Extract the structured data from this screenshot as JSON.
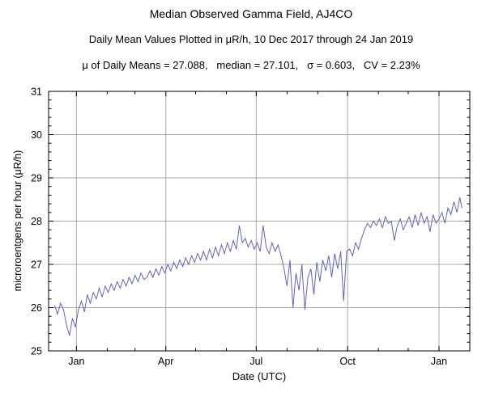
{
  "header": {
    "title": "Median Observed Gamma Field, AJ4CO",
    "subtitle": "Daily Mean Values Plotted in μR/h, 10 Dec 2017 through 24 Jan 2019",
    "stats": "μ of Daily Means = 27.088,   median = 27.101,   σ = 0.603,   CV = 2.23%"
  },
  "chart_data": {
    "type": "line",
    "title": "Median Observed Gamma Field, AJ4CO",
    "subtitle": "Daily Mean Values Plotted in μR/h, 10 Dec 2017 through 24 Jan 2019",
    "stats_line": "μ of Daily Means = 27.088,   median = 27.101,   σ = 0.603,   CV = 2.23%",
    "xlabel": "Date (UTC)",
    "ylabel": "microroentgens per hour (μR/h)",
    "ylim": [
      25,
      31
    ],
    "y_ticks": [
      25,
      26,
      27,
      28,
      29,
      30,
      31
    ],
    "grid": true,
    "legend": "none",
    "x_domain_days": [
      -6,
      418
    ],
    "x_epoch": "days since 10 Dec 2017",
    "x_major_ticks": [
      {
        "day": 22,
        "label": "Jan"
      },
      {
        "day": 112,
        "label": "Apr"
      },
      {
        "day": 203,
        "label": "Jul"
      },
      {
        "day": 295,
        "label": "Oct"
      },
      {
        "day": 387,
        "label": "Jan"
      }
    ],
    "x_minor_ticks_days": [
      53,
      81,
      142,
      173,
      234,
      265,
      326,
      356
    ],
    "line_color": "#6363b8",
    "grid_color": "#aaaaaa",
    "frame_color": "#000000",
    "series": [
      {
        "name": "daily-mean-gamma",
        "points": [
          [
            0,
            26.05
          ],
          [
            3,
            25.85
          ],
          [
            6,
            26.1
          ],
          [
            9,
            25.95
          ],
          [
            12,
            25.6
          ],
          [
            15,
            25.35
          ],
          [
            18,
            25.75
          ],
          [
            21,
            25.55
          ],
          [
            24,
            25.95
          ],
          [
            27,
            26.15
          ],
          [
            30,
            25.9
          ],
          [
            33,
            26.3
          ],
          [
            36,
            26.1
          ],
          [
            39,
            26.35
          ],
          [
            42,
            26.2
          ],
          [
            45,
            26.45
          ],
          [
            48,
            26.25
          ],
          [
            51,
            26.5
          ],
          [
            54,
            26.35
          ],
          [
            57,
            26.55
          ],
          [
            60,
            26.4
          ],
          [
            63,
            26.6
          ],
          [
            66,
            26.45
          ],
          [
            69,
            26.65
          ],
          [
            72,
            26.5
          ],
          [
            75,
            26.7
          ],
          [
            78,
            26.55
          ],
          [
            81,
            26.75
          ],
          [
            84,
            26.6
          ],
          [
            87,
            26.8
          ],
          [
            90,
            26.65
          ],
          [
            93,
            26.7
          ],
          [
            96,
            26.85
          ],
          [
            99,
            26.7
          ],
          [
            102,
            26.9
          ],
          [
            105,
            26.75
          ],
          [
            108,
            26.95
          ],
          [
            111,
            26.8
          ],
          [
            114,
            27.0
          ],
          [
            117,
            26.85
          ],
          [
            120,
            27.05
          ],
          [
            123,
            26.9
          ],
          [
            126,
            27.1
          ],
          [
            129,
            26.95
          ],
          [
            132,
            27.15
          ],
          [
            135,
            27.0
          ],
          [
            138,
            27.2
          ],
          [
            141,
            27.05
          ],
          [
            144,
            27.25
          ],
          [
            147,
            27.1
          ],
          [
            150,
            27.3
          ],
          [
            153,
            27.1
          ],
          [
            156,
            27.35
          ],
          [
            159,
            27.15
          ],
          [
            162,
            27.4
          ],
          [
            165,
            27.2
          ],
          [
            168,
            27.45
          ],
          [
            171,
            27.25
          ],
          [
            174,
            27.5
          ],
          [
            177,
            27.3
          ],
          [
            180,
            27.55
          ],
          [
            183,
            27.35
          ],
          [
            186,
            27.9
          ],
          [
            189,
            27.5
          ],
          [
            192,
            27.6
          ],
          [
            195,
            27.4
          ],
          [
            198,
            27.55
          ],
          [
            201,
            27.35
          ],
          [
            204,
            27.5
          ],
          [
            207,
            27.3
          ],
          [
            210,
            27.9
          ],
          [
            213,
            27.4
          ],
          [
            216,
            27.25
          ],
          [
            219,
            27.5
          ],
          [
            222,
            27.3
          ],
          [
            225,
            27.45
          ],
          [
            228,
            27.2
          ],
          [
            231,
            26.9
          ],
          [
            234,
            26.5
          ],
          [
            237,
            27.1
          ],
          [
            240,
            26.0
          ],
          [
            243,
            26.8
          ],
          [
            246,
            26.4
          ],
          [
            249,
            27.0
          ],
          [
            252,
            25.95
          ],
          [
            255,
            26.7
          ],
          [
            258,
            26.9
          ],
          [
            261,
            26.3
          ],
          [
            264,
            27.05
          ],
          [
            267,
            26.6
          ],
          [
            270,
            27.1
          ],
          [
            273,
            26.85
          ],
          [
            276,
            27.2
          ],
          [
            279,
            26.7
          ],
          [
            282,
            27.25
          ],
          [
            285,
            26.9
          ],
          [
            288,
            27.3
          ],
          [
            291,
            26.15
          ],
          [
            294,
            27.3
          ],
          [
            297,
            27.35
          ],
          [
            300,
            27.2
          ],
          [
            303,
            27.5
          ],
          [
            306,
            27.35
          ],
          [
            309,
            27.6
          ],
          [
            312,
            27.8
          ],
          [
            315,
            27.95
          ],
          [
            318,
            27.85
          ],
          [
            321,
            28.0
          ],
          [
            324,
            27.9
          ],
          [
            327,
            28.05
          ],
          [
            330,
            27.85
          ],
          [
            333,
            28.1
          ],
          [
            336,
            27.95
          ],
          [
            339,
            28.0
          ],
          [
            342,
            27.55
          ],
          [
            345,
            27.9
          ],
          [
            348,
            28.05
          ],
          [
            351,
            27.8
          ],
          [
            354,
            27.95
          ],
          [
            357,
            28.1
          ],
          [
            360,
            27.85
          ],
          [
            363,
            28.15
          ],
          [
            366,
            27.9
          ],
          [
            369,
            28.2
          ],
          [
            372,
            27.95
          ],
          [
            375,
            28.1
          ],
          [
            378,
            27.75
          ],
          [
            381,
            28.15
          ],
          [
            384,
            27.95
          ],
          [
            387,
            28.05
          ],
          [
            390,
            28.2
          ],
          [
            393,
            27.95
          ],
          [
            396,
            28.3
          ],
          [
            399,
            28.15
          ],
          [
            402,
            28.45
          ],
          [
            405,
            28.2
          ],
          [
            408,
            28.55
          ],
          [
            410,
            28.3
          ]
        ]
      }
    ]
  }
}
